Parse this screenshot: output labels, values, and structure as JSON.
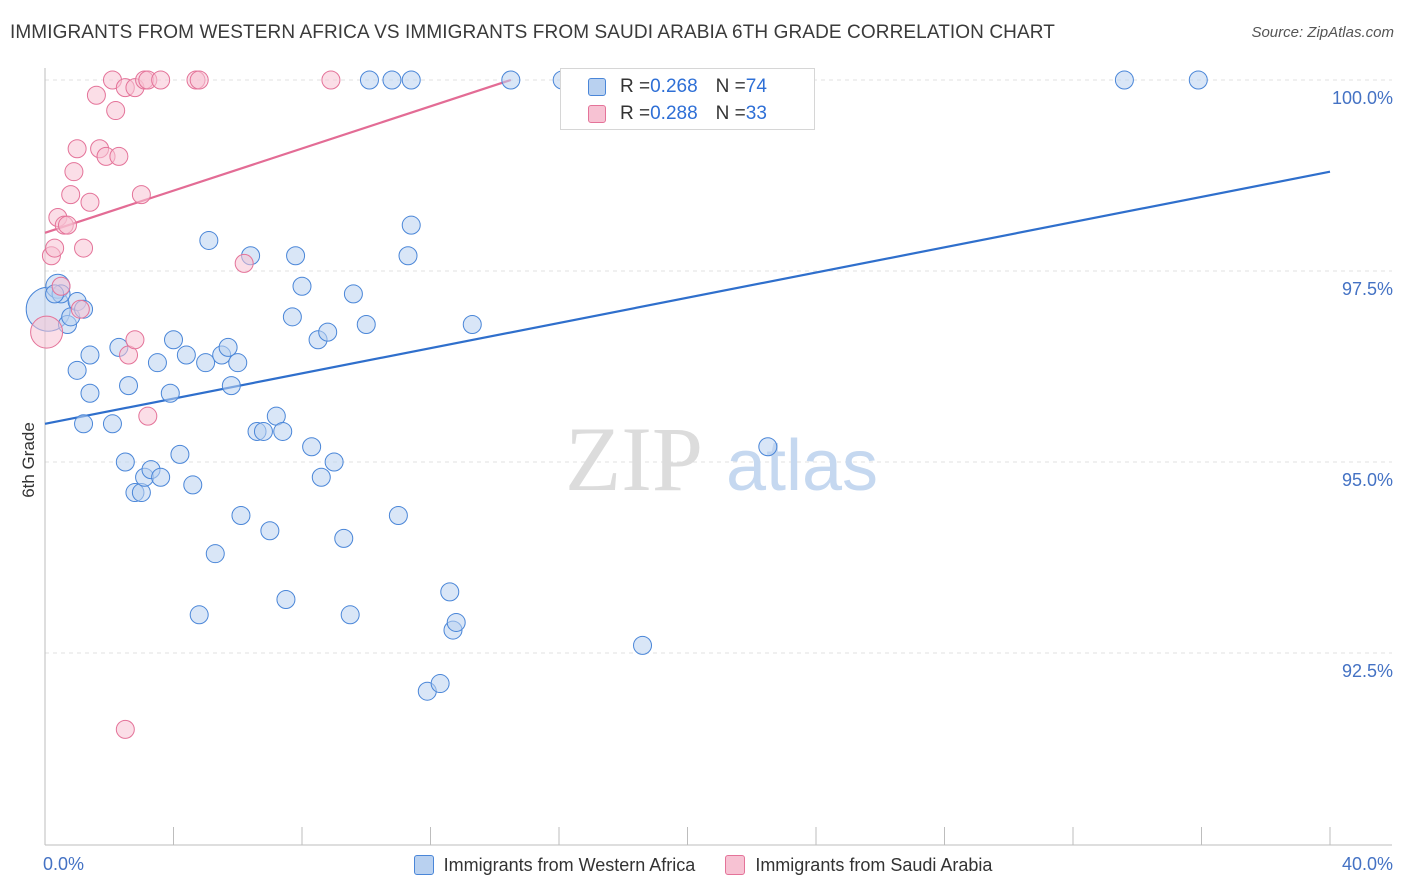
{
  "title": "IMMIGRANTS FROM WESTERN AFRICA VS IMMIGRANTS FROM SAUDI ARABIA 6TH GRADE CORRELATION CHART",
  "source": "Source: ZipAtlas.com",
  "watermark": {
    "zip": "ZIP",
    "atlas": "atlas"
  },
  "colors": {
    "blue": "#4a86d8",
    "blue_fill": "#b9d1f0",
    "pink": "#e47399",
    "pink_fill": "#f7c2d3",
    "tick_text": "#4472c4"
  },
  "legend": {
    "rows": [
      {
        "r_label": "R = ",
        "r_value": "0.268",
        "n_label": "N = ",
        "n_value": "74"
      },
      {
        "r_label": "R = ",
        "r_value": "0.288",
        "n_label": "N = ",
        "n_value": "33"
      }
    ]
  },
  "bottom_legend": [
    "Immigrants from Western Africa",
    "Immigrants from Saudi Arabia"
  ],
  "chart_data": {
    "type": "scatter",
    "title": "IMMIGRANTS FROM WESTERN AFRICA VS IMMIGRANTS FROM SAUDI ARABIA 6TH GRADE CORRELATION CHART",
    "xlabel": "",
    "ylabel": "6th Grade",
    "xlim": [
      0,
      40
    ],
    "ylim": [
      90.0,
      100.25
    ],
    "x_tick_labels": [
      "0.0%",
      "40.0%"
    ],
    "y_ticks": [
      92.5,
      95.0,
      97.5,
      100.0
    ],
    "y_tick_labels": [
      "92.5%",
      "95.0%",
      "97.5%",
      "100.0%"
    ],
    "grid": true,
    "legend_position": "top-center",
    "series": [
      {
        "name": "Immigrants from Western Africa",
        "color": "#4a86d8",
        "trend": {
          "x": [
            0,
            40
          ],
          "y": [
            95.5,
            98.8
          ]
        },
        "points": [
          [
            0.1,
            97.0
          ],
          [
            0.4,
            97.3
          ],
          [
            0.5,
            97.2
          ],
          [
            0.7,
            96.8
          ],
          [
            0.8,
            96.9
          ],
          [
            1.0,
            97.1
          ],
          [
            1.2,
            97.0
          ],
          [
            1.4,
            96.4
          ],
          [
            1.0,
            96.2
          ],
          [
            1.4,
            95.9
          ],
          [
            1.2,
            95.5
          ],
          [
            2.1,
            95.5
          ],
          [
            2.3,
            96.5
          ],
          [
            2.6,
            96.0
          ],
          [
            2.5,
            95.0
          ],
          [
            2.8,
            94.6
          ],
          [
            3.0,
            94.6
          ],
          [
            3.1,
            94.8
          ],
          [
            3.3,
            94.9
          ],
          [
            3.6,
            94.8
          ],
          [
            3.9,
            95.9
          ],
          [
            3.5,
            96.3
          ],
          [
            4.0,
            96.6
          ],
          [
            4.2,
            95.1
          ],
          [
            4.4,
            96.4
          ],
          [
            4.6,
            94.7
          ],
          [
            4.8,
            93.0
          ],
          [
            5.0,
            96.3
          ],
          [
            5.1,
            97.9
          ],
          [
            5.3,
            93.8
          ],
          [
            5.5,
            96.4
          ],
          [
            5.7,
            96.5
          ],
          [
            5.8,
            96.0
          ],
          [
            6.0,
            96.3
          ],
          [
            6.1,
            94.3
          ],
          [
            6.4,
            97.7
          ],
          [
            6.6,
            95.4
          ],
          [
            6.8,
            95.4
          ],
          [
            7.0,
            94.1
          ],
          [
            7.2,
            95.6
          ],
          [
            7.4,
            95.4
          ],
          [
            7.5,
            93.2
          ],
          [
            7.7,
            96.9
          ],
          [
            7.8,
            97.7
          ],
          [
            8.0,
            97.3
          ],
          [
            8.3,
            95.2
          ],
          [
            8.5,
            96.6
          ],
          [
            8.6,
            94.8
          ],
          [
            8.8,
            96.7
          ],
          [
            9.0,
            95.0
          ],
          [
            9.3,
            94.0
          ],
          [
            9.5,
            93.0
          ],
          [
            9.6,
            97.2
          ],
          [
            10.0,
            96.8
          ],
          [
            10.1,
            100.0
          ],
          [
            10.8,
            100.0
          ],
          [
            11.0,
            94.3
          ],
          [
            11.3,
            97.7
          ],
          [
            11.4,
            98.1
          ],
          [
            11.4,
            100.0
          ],
          [
            11.9,
            92.0
          ],
          [
            12.3,
            92.1
          ],
          [
            12.6,
            93.3
          ],
          [
            12.7,
            92.8
          ],
          [
            12.8,
            92.9
          ],
          [
            13.3,
            96.8
          ],
          [
            14.5,
            100.0
          ],
          [
            16.1,
            100.0
          ],
          [
            16.6,
            100.0
          ],
          [
            18.6,
            92.6
          ],
          [
            22.5,
            95.2
          ],
          [
            33.6,
            100.0
          ],
          [
            35.9,
            100.0
          ],
          [
            0.3,
            97.2
          ]
        ]
      },
      {
        "name": "Immigrants from Saudi Arabia",
        "color": "#e47399",
        "trend": {
          "x": [
            0,
            14.5
          ],
          "y": [
            98.0,
            100.0
          ]
        },
        "points": [
          [
            0.05,
            96.7
          ],
          [
            0.2,
            97.7
          ],
          [
            0.3,
            97.8
          ],
          [
            0.4,
            98.2
          ],
          [
            0.6,
            98.1
          ],
          [
            0.7,
            98.1
          ],
          [
            0.8,
            98.5
          ],
          [
            0.9,
            98.8
          ],
          [
            1.0,
            99.1
          ],
          [
            1.1,
            97.0
          ],
          [
            1.2,
            97.8
          ],
          [
            1.4,
            98.4
          ],
          [
            1.6,
            99.8
          ],
          [
            1.7,
            99.1
          ],
          [
            1.9,
            99.0
          ],
          [
            2.1,
            100.0
          ],
          [
            2.2,
            99.6
          ],
          [
            2.3,
            99.0
          ],
          [
            2.5,
            99.9
          ],
          [
            2.6,
            96.4
          ],
          [
            2.8,
            99.9
          ],
          [
            2.8,
            96.6
          ],
          [
            3.0,
            98.5
          ],
          [
            3.1,
            100.0
          ],
          [
            3.2,
            100.0
          ],
          [
            3.2,
            95.6
          ],
          [
            3.6,
            100.0
          ],
          [
            4.7,
            100.0
          ],
          [
            4.8,
            100.0
          ],
          [
            6.2,
            97.6
          ],
          [
            8.9,
            100.0
          ],
          [
            2.5,
            91.5
          ],
          [
            0.5,
            97.3
          ]
        ]
      }
    ]
  }
}
